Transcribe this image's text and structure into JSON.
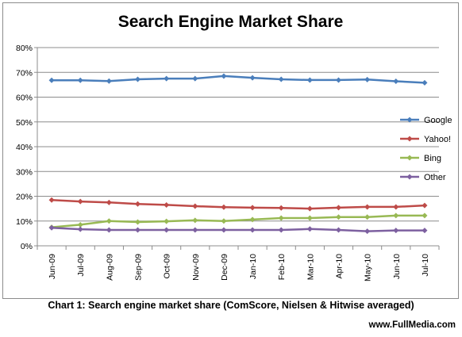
{
  "chart_data": {
    "type": "line",
    "title": "Search Engine Market Share",
    "categories": [
      "Jun-09",
      "Jul-09",
      "Aug-09",
      "Sep-09",
      "Oct-09",
      "Nov-09",
      "Dec-09",
      "Jan-10",
      "Feb-10",
      "Mar-10",
      "Apr-10",
      "May-10",
      "Jun-10",
      "Jul-10"
    ],
    "y_ticks": [
      "0%",
      "10%",
      "20%",
      "30%",
      "40%",
      "50%",
      "60%",
      "70%",
      "80%"
    ],
    "ylim": [
      0,
      80
    ],
    "grid": "horizontal",
    "legend_position": "right",
    "series": [
      {
        "name": "Google",
        "color": "#4a7ebb",
        "values": [
          66.8,
          66.8,
          66.5,
          67.2,
          67.5,
          67.5,
          68.5,
          67.8,
          67.2,
          66.9,
          66.9,
          67.1,
          66.4,
          65.8
        ]
      },
      {
        "name": "Yahoo!",
        "color": "#be4b48",
        "values": [
          18.5,
          17.9,
          17.5,
          16.9,
          16.5,
          16.0,
          15.6,
          15.4,
          15.3,
          15.0,
          15.4,
          15.7,
          15.7,
          16.3
        ]
      },
      {
        "name": "Bing",
        "color": "#98b954",
        "values": [
          7.5,
          8.5,
          10.0,
          9.6,
          9.9,
          10.3,
          10.0,
          10.6,
          11.2,
          11.2,
          11.6,
          11.6,
          12.2,
          12.2
        ]
      },
      {
        "name": "Other",
        "color": "#7d60a0",
        "values": [
          7.3,
          6.7,
          6.4,
          6.4,
          6.4,
          6.4,
          6.4,
          6.4,
          6.4,
          6.8,
          6.4,
          5.9,
          6.2,
          6.2
        ]
      }
    ]
  },
  "caption": "Chart 1: Search engine market share (ComScore, Nielsen & Hitwise averaged)",
  "site": "www.FullMedia.com"
}
